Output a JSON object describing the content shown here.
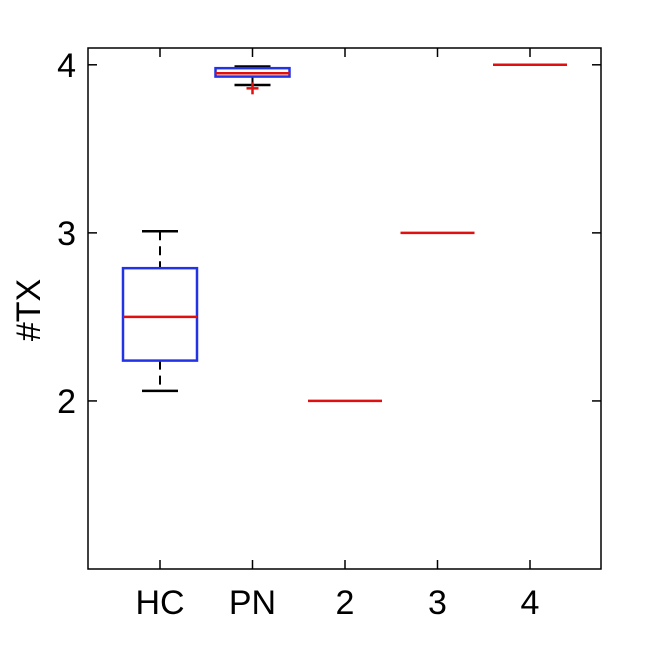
{
  "chart_data": {
    "type": "box",
    "ylabel": "#TX",
    "xlabel": "",
    "title": "",
    "categories": [
      "HC",
      "PN",
      "2",
      "3",
      "4"
    ],
    "ylim": [
      1,
      4.1
    ],
    "yticks": [
      2,
      3,
      4
    ],
    "ytick_labels": [
      "2",
      "3",
      "4"
    ],
    "grid": false,
    "boxes": [
      {
        "category": "HC",
        "whisker_low": 2.06,
        "q1": 2.24,
        "median": 2.5,
        "q3": 2.79,
        "whisker_high": 3.01,
        "outliers": []
      },
      {
        "category": "PN",
        "whisker_low": 3.88,
        "q1": 3.93,
        "median": 3.95,
        "q3": 3.98,
        "whisker_high": 3.99,
        "outliers": [
          3.86
        ]
      },
      {
        "category": "2",
        "whisker_low": 2,
        "q1": 2,
        "median": 2,
        "q3": 2,
        "whisker_high": 2,
        "outliers": []
      },
      {
        "category": "3",
        "whisker_low": 3,
        "q1": 3,
        "median": 3,
        "q3": 3,
        "whisker_high": 3,
        "outliers": []
      },
      {
        "category": "4",
        "whisker_low": 4,
        "q1": 4,
        "median": 4,
        "q3": 4,
        "whisker_high": 4,
        "outliers": []
      }
    ],
    "colors": {
      "box": "#2233e6",
      "median": "#e01010",
      "whisker": "#000000",
      "outlier": "#e01010",
      "axis": "#000000"
    }
  }
}
